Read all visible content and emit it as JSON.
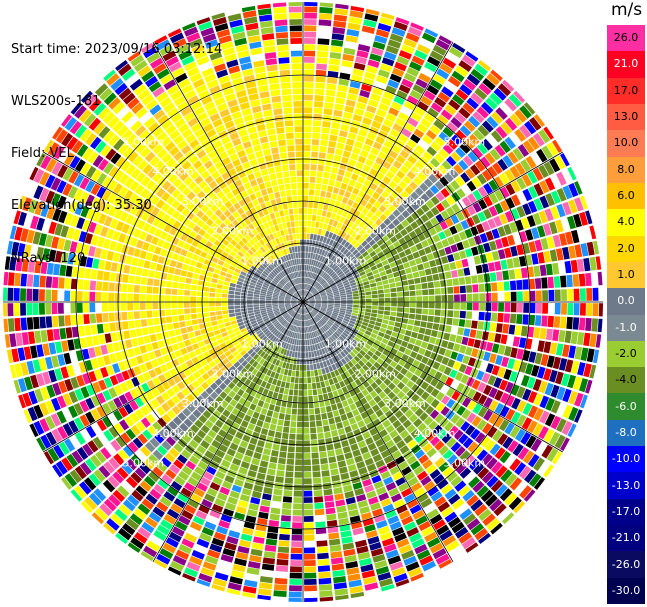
{
  "info": {
    "start_time": "Start time: 2023/09/16 03:12:14",
    "instrument": "WLS200s-181",
    "field": "Field: VEL",
    "elevation": "Elevation(deg): 35.30",
    "nrays": "NRays: 120"
  },
  "colorbar": {
    "unit": "m/s",
    "bins": [
      {
        "label": "26.0",
        "color": "#ff2ea3"
      },
      {
        "label": "21.0",
        "color": "#ff0022"
      },
      {
        "label": "17.0",
        "color": "#ff2c27"
      },
      {
        "label": "13.0",
        "color": "#ff5c43"
      },
      {
        "label": "10.0",
        "color": "#ff7b54"
      },
      {
        "label": "8.0",
        "color": "#ff9e3a"
      },
      {
        "label": "6.0",
        "color": "#ffc000"
      },
      {
        "label": "4.0",
        "color": "#ffff00"
      },
      {
        "label": "2.0",
        "color": "#ffd700"
      },
      {
        "label": "1.0",
        "color": "#ffc830"
      },
      {
        "label": "0.0",
        "color": "#6e7a8a"
      },
      {
        "label": "-1.0",
        "color": "#7b8a92"
      },
      {
        "label": "-2.0",
        "color": "#9acd32"
      },
      {
        "label": "-4.0",
        "color": "#6b8e23"
      },
      {
        "label": "-6.0",
        "color": "#2e8b2e"
      },
      {
        "label": "-8.0",
        "color": "#1e6fc0"
      },
      {
        "label": "-10.0",
        "color": "#0000ff"
      },
      {
        "label": "-13.0",
        "color": "#0000cd"
      },
      {
        "label": "-17.0",
        "color": "#00008b"
      },
      {
        "label": "-21.0",
        "color": "#000080"
      },
      {
        "label": "-26.0",
        "color": "#0a0a60"
      },
      {
        "label": "-30.0",
        "color": "#000050"
      }
    ]
  },
  "ppi": {
    "range_labels": [
      "1.00km",
      "2.00km",
      "3.00km",
      "4.00km",
      "5.00km"
    ],
    "noise_palette": [
      "#ff1493",
      "#ffff00",
      "#0000ff",
      "#00ff7f",
      "#ff4500",
      "#9acd32",
      "#000080",
      "#ff69b4",
      "#6b8e23",
      "#800000",
      "#ffd700",
      "#1e90ff",
      "#000000",
      "#ff0000",
      "#ffffff",
      "#008000",
      "#ff8c00",
      "#8b008b"
    ]
  }
}
